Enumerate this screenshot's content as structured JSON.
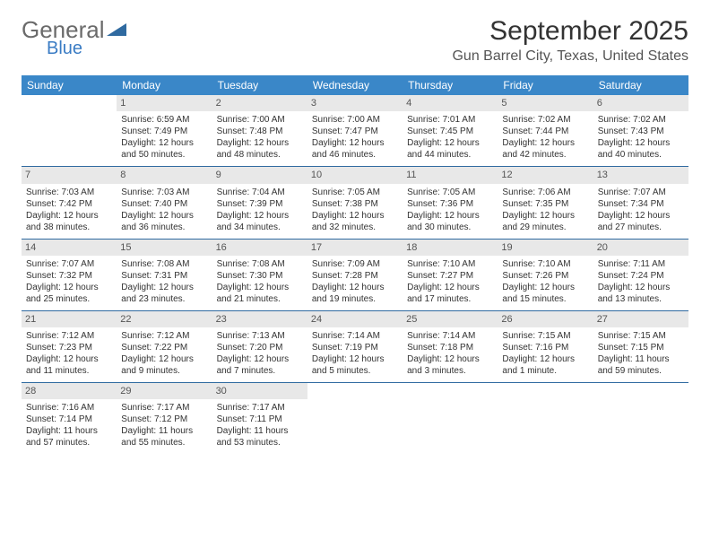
{
  "logo": {
    "text1": "General",
    "text2": "Blue",
    "color_gray": "#6a6a6a",
    "color_blue": "#3a7cc4"
  },
  "title": "September 2025",
  "location": "Gun Barrel City, Texas, United States",
  "header_bg": "#3a87c8",
  "header_fg": "#ffffff",
  "daynum_bg": "#e8e8e8",
  "sep_color": "#2f6aa0",
  "day_headers": [
    "Sunday",
    "Monday",
    "Tuesday",
    "Wednesday",
    "Thursday",
    "Friday",
    "Saturday"
  ],
  "weeks": [
    [
      null,
      {
        "n": "1",
        "sr": "Sunrise: 6:59 AM",
        "ss": "Sunset: 7:49 PM",
        "dl": "Daylight: 12 hours and 50 minutes."
      },
      {
        "n": "2",
        "sr": "Sunrise: 7:00 AM",
        "ss": "Sunset: 7:48 PM",
        "dl": "Daylight: 12 hours and 48 minutes."
      },
      {
        "n": "3",
        "sr": "Sunrise: 7:00 AM",
        "ss": "Sunset: 7:47 PM",
        "dl": "Daylight: 12 hours and 46 minutes."
      },
      {
        "n": "4",
        "sr": "Sunrise: 7:01 AM",
        "ss": "Sunset: 7:45 PM",
        "dl": "Daylight: 12 hours and 44 minutes."
      },
      {
        "n": "5",
        "sr": "Sunrise: 7:02 AM",
        "ss": "Sunset: 7:44 PM",
        "dl": "Daylight: 12 hours and 42 minutes."
      },
      {
        "n": "6",
        "sr": "Sunrise: 7:02 AM",
        "ss": "Sunset: 7:43 PM",
        "dl": "Daylight: 12 hours and 40 minutes."
      }
    ],
    [
      {
        "n": "7",
        "sr": "Sunrise: 7:03 AM",
        "ss": "Sunset: 7:42 PM",
        "dl": "Daylight: 12 hours and 38 minutes."
      },
      {
        "n": "8",
        "sr": "Sunrise: 7:03 AM",
        "ss": "Sunset: 7:40 PM",
        "dl": "Daylight: 12 hours and 36 minutes."
      },
      {
        "n": "9",
        "sr": "Sunrise: 7:04 AM",
        "ss": "Sunset: 7:39 PM",
        "dl": "Daylight: 12 hours and 34 minutes."
      },
      {
        "n": "10",
        "sr": "Sunrise: 7:05 AM",
        "ss": "Sunset: 7:38 PM",
        "dl": "Daylight: 12 hours and 32 minutes."
      },
      {
        "n": "11",
        "sr": "Sunrise: 7:05 AM",
        "ss": "Sunset: 7:36 PM",
        "dl": "Daylight: 12 hours and 30 minutes."
      },
      {
        "n": "12",
        "sr": "Sunrise: 7:06 AM",
        "ss": "Sunset: 7:35 PM",
        "dl": "Daylight: 12 hours and 29 minutes."
      },
      {
        "n": "13",
        "sr": "Sunrise: 7:07 AM",
        "ss": "Sunset: 7:34 PM",
        "dl": "Daylight: 12 hours and 27 minutes."
      }
    ],
    [
      {
        "n": "14",
        "sr": "Sunrise: 7:07 AM",
        "ss": "Sunset: 7:32 PM",
        "dl": "Daylight: 12 hours and 25 minutes."
      },
      {
        "n": "15",
        "sr": "Sunrise: 7:08 AM",
        "ss": "Sunset: 7:31 PM",
        "dl": "Daylight: 12 hours and 23 minutes."
      },
      {
        "n": "16",
        "sr": "Sunrise: 7:08 AM",
        "ss": "Sunset: 7:30 PM",
        "dl": "Daylight: 12 hours and 21 minutes."
      },
      {
        "n": "17",
        "sr": "Sunrise: 7:09 AM",
        "ss": "Sunset: 7:28 PM",
        "dl": "Daylight: 12 hours and 19 minutes."
      },
      {
        "n": "18",
        "sr": "Sunrise: 7:10 AM",
        "ss": "Sunset: 7:27 PM",
        "dl": "Daylight: 12 hours and 17 minutes."
      },
      {
        "n": "19",
        "sr": "Sunrise: 7:10 AM",
        "ss": "Sunset: 7:26 PM",
        "dl": "Daylight: 12 hours and 15 minutes."
      },
      {
        "n": "20",
        "sr": "Sunrise: 7:11 AM",
        "ss": "Sunset: 7:24 PM",
        "dl": "Daylight: 12 hours and 13 minutes."
      }
    ],
    [
      {
        "n": "21",
        "sr": "Sunrise: 7:12 AM",
        "ss": "Sunset: 7:23 PM",
        "dl": "Daylight: 12 hours and 11 minutes."
      },
      {
        "n": "22",
        "sr": "Sunrise: 7:12 AM",
        "ss": "Sunset: 7:22 PM",
        "dl": "Daylight: 12 hours and 9 minutes."
      },
      {
        "n": "23",
        "sr": "Sunrise: 7:13 AM",
        "ss": "Sunset: 7:20 PM",
        "dl": "Daylight: 12 hours and 7 minutes."
      },
      {
        "n": "24",
        "sr": "Sunrise: 7:14 AM",
        "ss": "Sunset: 7:19 PM",
        "dl": "Daylight: 12 hours and 5 minutes."
      },
      {
        "n": "25",
        "sr": "Sunrise: 7:14 AM",
        "ss": "Sunset: 7:18 PM",
        "dl": "Daylight: 12 hours and 3 minutes."
      },
      {
        "n": "26",
        "sr": "Sunrise: 7:15 AM",
        "ss": "Sunset: 7:16 PM",
        "dl": "Daylight: 12 hours and 1 minute."
      },
      {
        "n": "27",
        "sr": "Sunrise: 7:15 AM",
        "ss": "Sunset: 7:15 PM",
        "dl": "Daylight: 11 hours and 59 minutes."
      }
    ],
    [
      {
        "n": "28",
        "sr": "Sunrise: 7:16 AM",
        "ss": "Sunset: 7:14 PM",
        "dl": "Daylight: 11 hours and 57 minutes."
      },
      {
        "n": "29",
        "sr": "Sunrise: 7:17 AM",
        "ss": "Sunset: 7:12 PM",
        "dl": "Daylight: 11 hours and 55 minutes."
      },
      {
        "n": "30",
        "sr": "Sunrise: 7:17 AM",
        "ss": "Sunset: 7:11 PM",
        "dl": "Daylight: 11 hours and 53 minutes."
      },
      null,
      null,
      null,
      null
    ]
  ]
}
